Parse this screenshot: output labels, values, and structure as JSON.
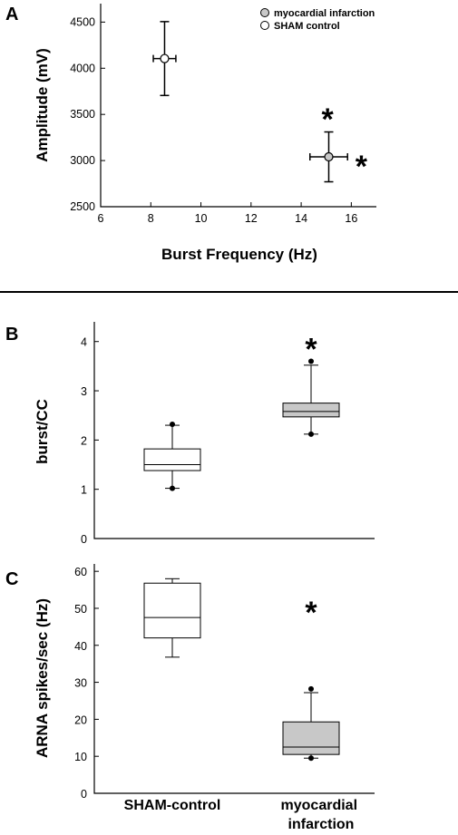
{
  "colors": {
    "sham": "#ffffff",
    "mi": "#c8c8c8",
    "stroke": "#000000",
    "divider": "#000000"
  },
  "chart_data": [
    {
      "panel": "A",
      "type": "scatter",
      "xlabel": "Burst Frequency (Hz)",
      "ylabel": "Amplitude (mV)",
      "xlim": [
        6,
        17
      ],
      "ylim": [
        2500,
        4700
      ],
      "xticks": [
        6,
        8,
        10,
        12,
        14,
        16
      ],
      "yticks": [
        2500,
        3000,
        3500,
        4000,
        4500
      ],
      "legend": {
        "position": "top-right",
        "entries": [
          "myocardial infarction",
          "SHAM control"
        ]
      },
      "series": [
        {
          "name": "myocardial infarction",
          "color": "#c8c8c8",
          "x": 15.1,
          "y": 3040,
          "xerr": 0.75,
          "yerr": 270
        },
        {
          "name": "SHAM control",
          "color": "#ffffff",
          "x": 8.55,
          "y": 4105,
          "xerr": 0.45,
          "yerr": 400
        }
      ],
      "annotations": [
        {
          "text": "*",
          "x": 15.05,
          "y": 3550
        },
        {
          "text": "*",
          "x": 16.4,
          "y": 3040
        }
      ]
    },
    {
      "panel": "B",
      "type": "box",
      "ylabel": "burst/CC",
      "ylim": [
        0,
        4.4
      ],
      "yticks": [
        0,
        1,
        2,
        3,
        4
      ],
      "categories": [
        "SHAM-control",
        "myocardial infarction"
      ],
      "boxes": [
        {
          "group": "SHAM-control",
          "color": "#ffffff",
          "whisker_low": 1.02,
          "q1": 1.38,
          "median": 1.5,
          "q3": 1.82,
          "whisker_high": 2.3,
          "outliers": [
            1.02,
            2.32
          ]
        },
        {
          "group": "myocardial infarction",
          "color": "#c8c8c8",
          "whisker_low": 2.12,
          "q1": 2.47,
          "median": 2.58,
          "q3": 2.75,
          "whisker_high": 3.52,
          "outliers": [
            2.12,
            3.6
          ]
        }
      ],
      "annotations": [
        {
          "text": "*",
          "group": "myocardial infarction",
          "y": 4.0
        }
      ]
    },
    {
      "panel": "C",
      "type": "box",
      "ylabel": "ARNA spikes/sec (Hz)",
      "ylim": [
        0,
        62
      ],
      "yticks": [
        0,
        10,
        20,
        30,
        40,
        50,
        60
      ],
      "categories": [
        "SHAM-control",
        "myocardial infarction"
      ],
      "boxes": [
        {
          "group": "SHAM-control",
          "color": "#ffffff",
          "whisker_low": 36.8,
          "q1": 42,
          "median": 47.5,
          "q3": 56.8,
          "whisker_high": 58,
          "outliers": []
        },
        {
          "group": "myocardial infarction",
          "color": "#c8c8c8",
          "whisker_low": 9.5,
          "q1": 10.5,
          "median": 12.5,
          "q3": 19.3,
          "whisker_high": 27.2,
          "outliers": [
            9.5,
            28.2
          ]
        }
      ],
      "annotations": [
        {
          "text": "*",
          "group": "myocardial infarction",
          "y": 51
        }
      ]
    }
  ],
  "category_labels": [
    "SHAM-control",
    "myocardial\ninfarction"
  ]
}
